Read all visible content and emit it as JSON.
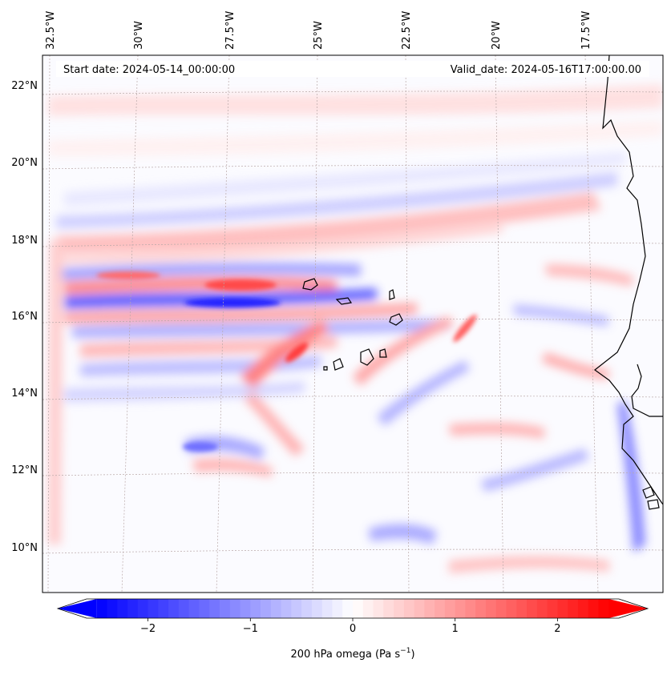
{
  "map": {
    "start_label": "Start date: 2024-05-14_00:00:00",
    "valid_label": "Valid_date: 2024-05-16T17:00:00.00",
    "lon_labels": [
      "32.5°W",
      "30°W",
      "27.5°W",
      "25°W",
      "22.5°W",
      "20°W",
      "17.5°W"
    ],
    "lat_labels": [
      "22°N",
      "20°N",
      "18°N",
      "16°N",
      "14°N",
      "12°N",
      "10°N"
    ]
  },
  "colorbar": {
    "label": "200 hPa omega (Pa s",
    "label_sup": "−1",
    "label_close": ")",
    "ticks": [
      {
        "value": -2,
        "text": "−2"
      },
      {
        "value": -1,
        "text": "−1"
      },
      {
        "value": 0,
        "text": "0"
      },
      {
        "value": 1,
        "text": "1"
      },
      {
        "value": 2,
        "text": "2"
      }
    ],
    "vmin": -2.6,
    "vmax": 2.6,
    "color_low": "#0000ff",
    "color_mid": "#ffffff",
    "color_high": "#ff0000"
  }
}
